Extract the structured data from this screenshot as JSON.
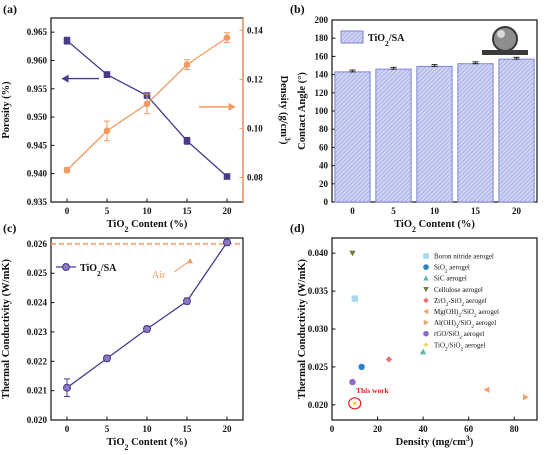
{
  "colors": {
    "purple": "#4b3a8c",
    "orange": "#f29a62",
    "bar_fill": "#c9cdf0",
    "bar_edge": "#7f86d6",
    "dash": "#f29a62",
    "circle_mark": "#e02020"
  },
  "chart_data": [
    {
      "panel": "(a)",
      "type": "line",
      "xlabel": "TiO2 Content (%)",
      "categories": [
        "0",
        "5",
        "10",
        "15",
        "20"
      ],
      "x": [
        0,
        5,
        10,
        15,
        20
      ],
      "xlim": [
        -2,
        22
      ],
      "series": [
        {
          "axis": "left",
          "color": "#4b3a8c",
          "marker": "square",
          "values": [
            0.9635,
            0.9575,
            0.9538,
            0.9458,
            0.9395
          ],
          "errors": [
            0.0006,
            0.0005,
            0.0003,
            0.0006,
            0.0003
          ]
        },
        {
          "axis": "right",
          "color": "#f29a62",
          "marker": "circle",
          "values": [
            0.083,
            0.099,
            0.11,
            0.126,
            0.137
          ],
          "errors": [
            0.001,
            0.004,
            0.004,
            0.002,
            0.002
          ]
        }
      ],
      "ylabel_left": "Porosity (%)",
      "ylim_left": [
        0.935,
        0.9675
      ],
      "yticks_left": [
        "0.935",
        "0.940",
        "0.945",
        "0.950",
        "0.955",
        "0.960",
        "0.965"
      ],
      "ylabel_right": "Density (g/cm3)",
      "ylim_right": [
        0.07,
        0.145
      ],
      "yticks_right": [
        "0.08",
        "0.10",
        "0.12",
        "0.14"
      ],
      "annotations": [
        "left-arrow",
        "right-arrow"
      ]
    },
    {
      "panel": "(b)",
      "type": "bar",
      "xlabel": "TiO2 Content (%)",
      "ylabel": "Contact Angle (°)",
      "categories": [
        "0",
        "5",
        "10",
        "15",
        "20"
      ],
      "series": [
        {
          "name": "TiO2/SA",
          "values": [
            143,
            146,
            149,
            152,
            157
          ],
          "errors": [
            2,
            2,
            2,
            2,
            2
          ]
        }
      ],
      "ylim": [
        0,
        200
      ],
      "yticks": [
        "0",
        "20",
        "40",
        "60",
        "80",
        "100",
        "120",
        "140",
        "160",
        "180",
        "200"
      ],
      "legend": "top-left"
    },
    {
      "panel": "(c)",
      "type": "line",
      "xlabel": "TiO2 Content (%)",
      "ylabel": "Thermal Conductivity (W/mK)",
      "categories": [
        "0",
        "5",
        "10",
        "15",
        "20"
      ],
      "x": [
        0,
        5,
        10,
        15,
        20
      ],
      "xlim": [
        -2,
        22
      ],
      "series": [
        {
          "name": "TiO2/SA",
          "color": "#4b3a8c",
          "marker": "circle",
          "values": [
            0.0211,
            0.0221,
            0.0231,
            0.02405,
            0.02605
          ],
          "errors": [
            0.0003,
            0.0001,
            0.0001,
            0.0001,
            0.0001
          ]
        }
      ],
      "reference_line": {
        "label": "Air",
        "value": 0.026
      },
      "ylim": [
        0.02,
        0.0262
      ],
      "yticks": [
        "0.020",
        "0.021",
        "0.022",
        "0.023",
        "0.024",
        "0.025",
        "0.026"
      ],
      "legend": "top-left"
    },
    {
      "panel": "(d)",
      "type": "scatter",
      "xlabel": "Density (mg/cm3)",
      "ylabel": "Thermal Conductivity (W/mK)",
      "xlim": [
        0,
        90
      ],
      "ylim": [
        0.018,
        0.042
      ],
      "xticks": [
        "0",
        "20",
        "40",
        "60",
        "80"
      ],
      "yticks": [
        "0.020",
        "0.025",
        "0.030",
        "0.035",
        "0.040"
      ],
      "series": [
        {
          "name": "Boron nitride aerogel",
          "marker": "square",
          "color": "#a8d8ee",
          "x": [
            10
          ],
          "y": [
            0.034
          ]
        },
        {
          "name": "SiO2 aerogel",
          "marker": "circle",
          "color": "#2e7fc4",
          "x": [
            13
          ],
          "y": [
            0.025
          ]
        },
        {
          "name": "SiC aerogel",
          "marker": "triangle-up",
          "color": "#5cb8a8",
          "x": [
            40
          ],
          "y": [
            0.027
          ]
        },
        {
          "name": "Cellulose aerogel",
          "marker": "triangle-down",
          "color": "#7a7a3a",
          "x": [
            9
          ],
          "y": [
            0.04
          ]
        },
        {
          "name": "ZrO2-SiO2 aerogel",
          "marker": "diamond",
          "color": "#e57373",
          "x": [
            25
          ],
          "y": [
            0.026
          ]
        },
        {
          "name": "Mg(OH)2/SiO2 aerogel",
          "marker": "triangle-left",
          "color": "#f0a070",
          "x": [
            68
          ],
          "y": [
            0.022
          ]
        },
        {
          "name": "Al(OH)3/SiO2 aerogel",
          "marker": "triangle-right",
          "color": "#f0a070",
          "x": [
            85
          ],
          "y": [
            0.021
          ]
        },
        {
          "name": "rGO/SiO2 aerogel",
          "marker": "circle",
          "color": "#8a6cc0",
          "x": [
            9
          ],
          "y": [
            0.023
          ]
        },
        {
          "name": "TiO2/SiO2 aerogel",
          "marker": "star",
          "color": "#f2d24a",
          "x": [
            10
          ],
          "y": [
            0.0202
          ]
        }
      ],
      "annotations": [
        "This work"
      ],
      "legend": "top-right"
    }
  ]
}
